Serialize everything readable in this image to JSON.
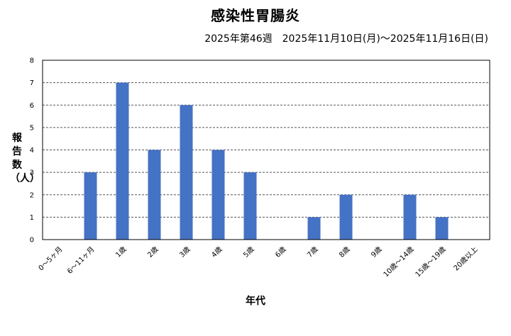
{
  "chart_data": {
    "type": "bar",
    "title": "感染性胃腸炎",
    "subtitle": "2025年第46週　2025年11月10日(月)～2025年11月16日(日)",
    "xlabel": "年代",
    "ylabel": "報告数（人）",
    "categories": [
      "0～5ヶ月",
      "6～11ヶ月",
      "1歳",
      "2歳",
      "3歳",
      "4歳",
      "5歳",
      "6歳",
      "7歳",
      "8歳",
      "9歳",
      "10歳～14歳",
      "15歳～19歳",
      "20歳以上"
    ],
    "values": [
      0,
      3,
      7,
      4,
      6,
      4,
      3,
      0,
      1,
      2,
      0,
      2,
      1,
      0
    ],
    "ylim": [
      0,
      8
    ],
    "yticks": [
      0,
      1,
      2,
      3,
      4,
      5,
      6,
      7,
      8
    ],
    "grid": true,
    "bar_color": "#4472c4"
  }
}
